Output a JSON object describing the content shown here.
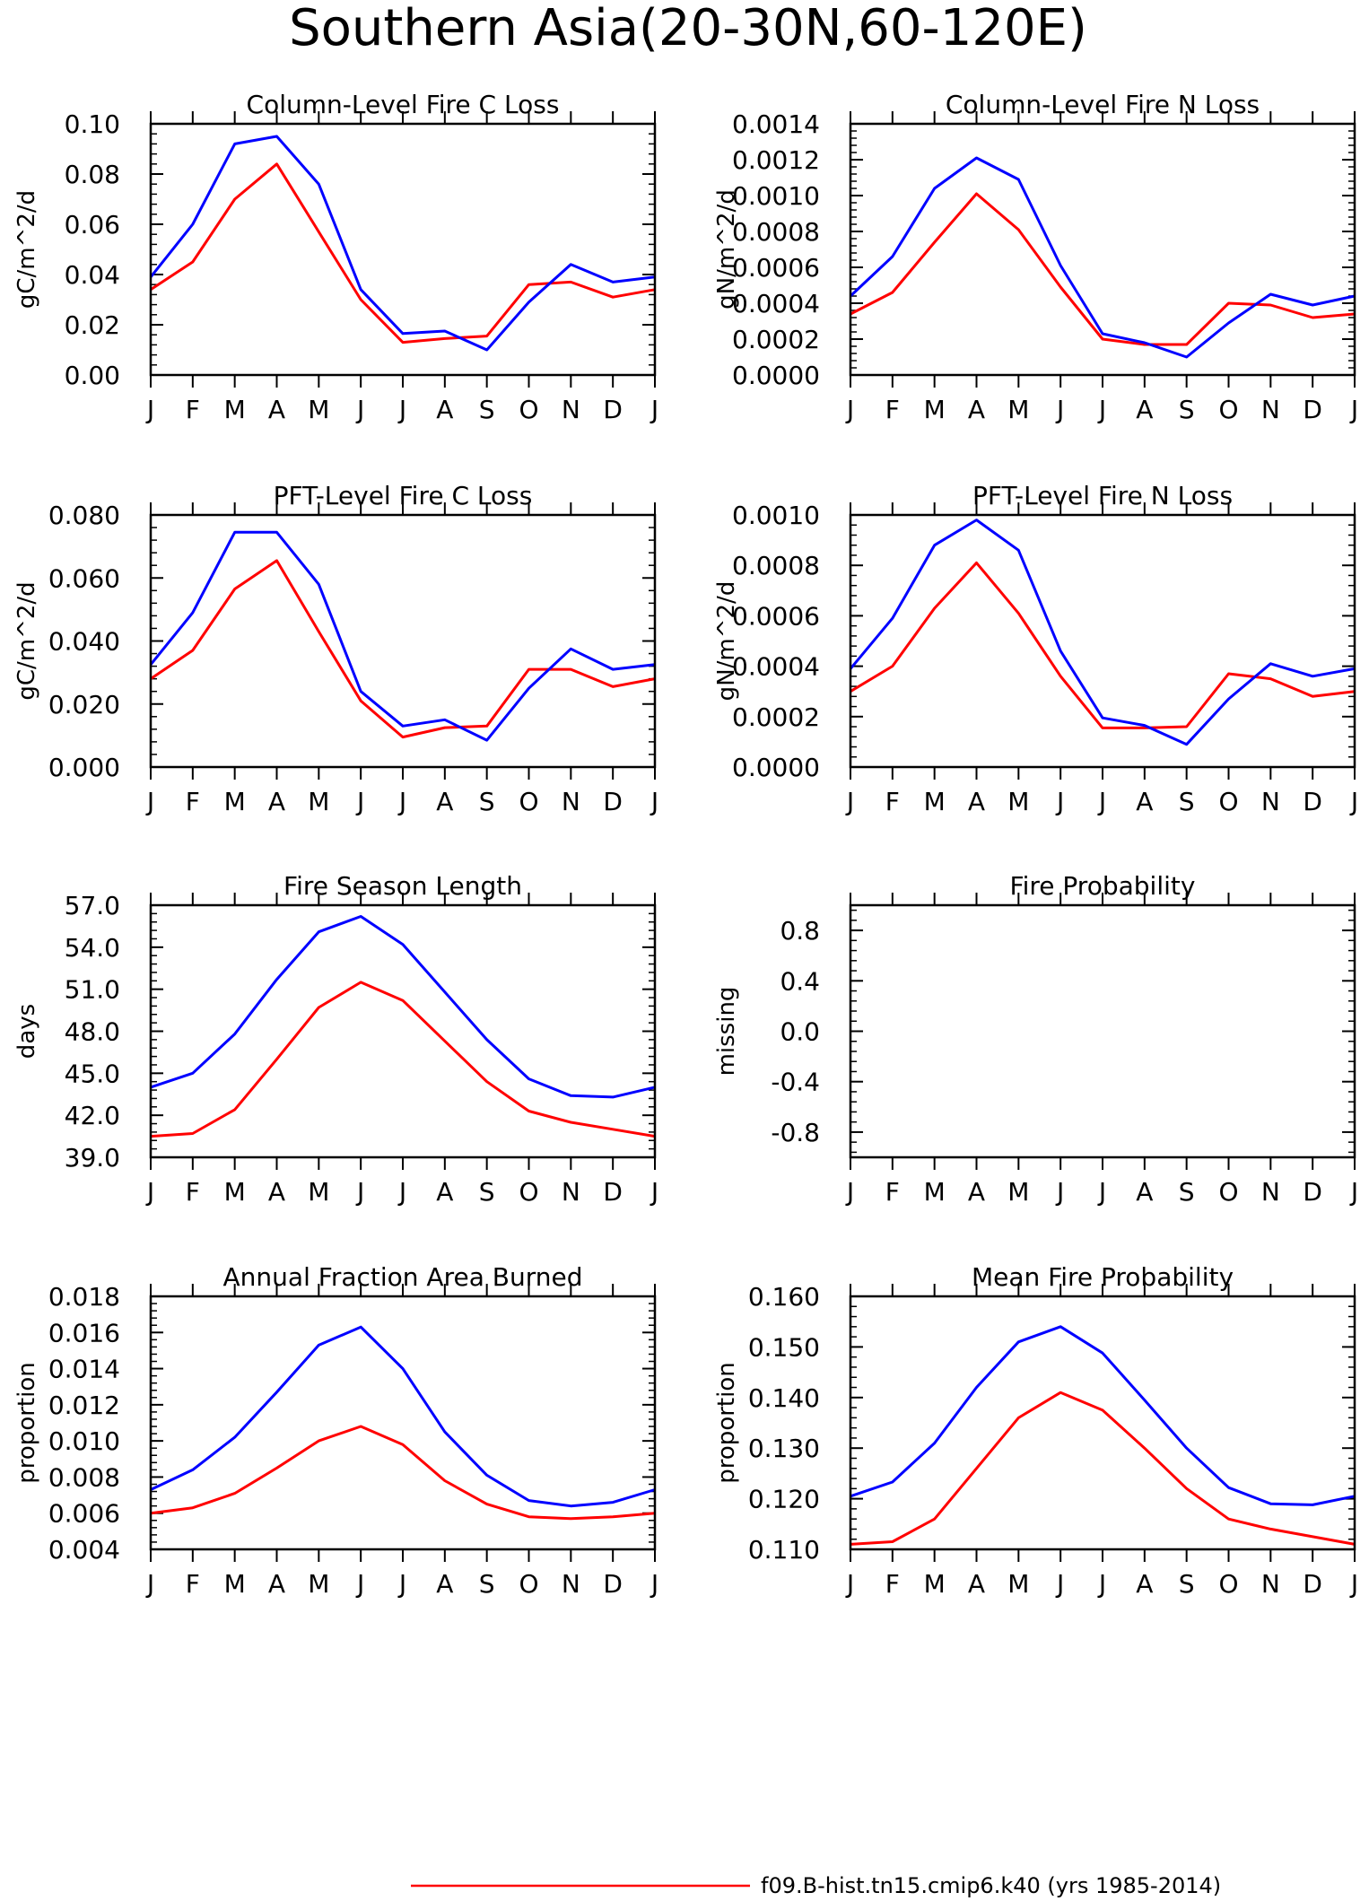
{
  "figure": {
    "title": "Southern Asia(20-30N,60-120E)",
    "legend_entry": "f09.B-hist.tn15.cmip6.k40 (yrs 1985-2014)"
  },
  "colors": {
    "series_red": "#ff0000",
    "series_blue": "#0000ff",
    "axis": "#000000"
  },
  "chart_data": [
    {
      "type": "line",
      "title": "Column-Level Fire C Loss",
      "ylabel": "gC/m^2/d",
      "categories": [
        "J",
        "F",
        "M",
        "A",
        "M",
        "J",
        "J",
        "A",
        "S",
        "O",
        "N",
        "D",
        "J"
      ],
      "ylim": [
        0,
        0.1
      ],
      "yticks": [
        "0.00",
        "0.02",
        "0.04",
        "0.06",
        "0.08",
        "0.10"
      ],
      "grid": false,
      "series": [
        {
          "color": "red",
          "values": [
            0.034,
            0.045,
            0.07,
            0.084,
            0.057,
            0.03,
            0.013,
            0.0145,
            0.0155,
            0.036,
            0.037,
            0.031,
            0.034
          ]
        },
        {
          "color": "blue",
          "values": [
            0.039,
            0.06,
            0.092,
            0.095,
            0.076,
            0.034,
            0.0165,
            0.0175,
            0.01,
            0.029,
            0.044,
            0.037,
            0.039
          ]
        }
      ]
    },
    {
      "type": "line",
      "title": "Column-Level Fire N Loss",
      "ylabel": "gN/m^2/d",
      "categories": [
        "J",
        "F",
        "M",
        "A",
        "M",
        "J",
        "J",
        "A",
        "S",
        "O",
        "N",
        "D",
        "J"
      ],
      "ylim": [
        0,
        0.0014
      ],
      "yticks": [
        "0.0000",
        "0.0002",
        "0.0004",
        "0.0006",
        "0.0008",
        "0.0010",
        "0.0012",
        "0.0014"
      ],
      "grid": false,
      "series": [
        {
          "color": "red",
          "values": [
            0.00034,
            0.00046,
            0.00074,
            0.00101,
            0.00081,
            0.00049,
            0.0002,
            0.00017,
            0.00017,
            0.0004,
            0.00039,
            0.00032,
            0.00034
          ]
        },
        {
          "color": "blue",
          "values": [
            0.00044,
            0.00066,
            0.00104,
            0.00121,
            0.00109,
            0.00061,
            0.00023,
            0.00018,
            0.0001,
            0.00029,
            0.00045,
            0.00039,
            0.00044
          ]
        }
      ]
    },
    {
      "type": "line",
      "title": "PFT-Level Fire C Loss",
      "ylabel": "gC/m^2/d",
      "categories": [
        "J",
        "F",
        "M",
        "A",
        "M",
        "J",
        "J",
        "A",
        "S",
        "O",
        "N",
        "D",
        "J"
      ],
      "ylim": [
        0,
        0.08
      ],
      "yticks": [
        "0.000",
        "0.020",
        "0.040",
        "0.060",
        "0.080"
      ],
      "grid": false,
      "series": [
        {
          "color": "red",
          "values": [
            0.028,
            0.037,
            0.0565,
            0.0655,
            0.043,
            0.021,
            0.0095,
            0.0125,
            0.013,
            0.031,
            0.031,
            0.0255,
            0.028
          ]
        },
        {
          "color": "blue",
          "values": [
            0.0325,
            0.049,
            0.0745,
            0.0745,
            0.058,
            0.024,
            0.013,
            0.015,
            0.0085,
            0.025,
            0.0375,
            0.031,
            0.0325
          ]
        }
      ]
    },
    {
      "type": "line",
      "title": "PFT-Level Fire N Loss",
      "ylabel": "gN/m^2/d",
      "categories": [
        "J",
        "F",
        "M",
        "A",
        "M",
        "J",
        "J",
        "A",
        "S",
        "O",
        "N",
        "D",
        "J"
      ],
      "ylim": [
        0,
        0.001
      ],
      "yticks": [
        "0.0000",
        "0.0002",
        "0.0004",
        "0.0006",
        "0.0008",
        "0.0010"
      ],
      "grid": false,
      "series": [
        {
          "color": "red",
          "values": [
            0.0003,
            0.0004,
            0.00063,
            0.00081,
            0.00061,
            0.00036,
            0.000155,
            0.000155,
            0.00016,
            0.00037,
            0.00035,
            0.00028,
            0.0003
          ]
        },
        {
          "color": "blue",
          "values": [
            0.00039,
            0.00059,
            0.00088,
            0.00098,
            0.00086,
            0.00046,
            0.000195,
            0.000165,
            9e-05,
            0.00027,
            0.00041,
            0.00036,
            0.00039
          ]
        }
      ]
    },
    {
      "type": "line",
      "title": "Fire Season Length",
      "ylabel": "days",
      "categories": [
        "J",
        "F",
        "M",
        "A",
        "M",
        "J",
        "J",
        "A",
        "S",
        "O",
        "N",
        "D",
        "J"
      ],
      "ylim": [
        39,
        57
      ],
      "yticks": [
        "39.0",
        "42.0",
        "45.0",
        "48.0",
        "51.0",
        "54.0",
        "57.0"
      ],
      "grid": false,
      "series": [
        {
          "color": "red",
          "values": [
            40.5,
            40.7,
            42.4,
            46.0,
            49.7,
            51.5,
            50.2,
            47.3,
            44.4,
            42.3,
            41.5,
            41.0,
            40.5
          ]
        },
        {
          "color": "blue",
          "values": [
            44.0,
            45.0,
            47.8,
            51.7,
            55.1,
            56.2,
            54.2,
            50.8,
            47.4,
            44.6,
            43.4,
            43.3,
            44.0
          ]
        }
      ]
    },
    {
      "type": "line",
      "title": "Fire Probability",
      "ylabel": "missing",
      "categories": [
        "J",
        "F",
        "M",
        "A",
        "M",
        "J",
        "J",
        "A",
        "S",
        "O",
        "N",
        "D",
        "J"
      ],
      "ylim": [
        -1,
        1
      ],
      "yticks": [
        "-0.8",
        "-0.4",
        "0.0",
        "0.4",
        "0.8"
      ],
      "ytick_values": [
        -0.8,
        -0.4,
        0.0,
        0.4,
        0.8
      ],
      "grid": false,
      "series": []
    },
    {
      "type": "line",
      "title": "Annual Fraction Area Burned",
      "ylabel": "proportion",
      "categories": [
        "J",
        "F",
        "M",
        "A",
        "M",
        "J",
        "J",
        "A",
        "S",
        "O",
        "N",
        "D",
        "J"
      ],
      "ylim": [
        0.004,
        0.018
      ],
      "yticks": [
        "0.004",
        "0.006",
        "0.008",
        "0.010",
        "0.012",
        "0.014",
        "0.016",
        "0.018"
      ],
      "grid": false,
      "series": [
        {
          "color": "red",
          "values": [
            0.006,
            0.0063,
            0.0071,
            0.0085,
            0.01,
            0.0108,
            0.0098,
            0.0078,
            0.0065,
            0.0058,
            0.0057,
            0.0058,
            0.006
          ]
        },
        {
          "color": "blue",
          "values": [
            0.0073,
            0.0084,
            0.0102,
            0.0127,
            0.0153,
            0.0163,
            0.014,
            0.0105,
            0.0081,
            0.0067,
            0.0064,
            0.0066,
            0.0073
          ]
        }
      ]
    },
    {
      "type": "line",
      "title": "Mean Fire Probability",
      "ylabel": "proportion",
      "categories": [
        "J",
        "F",
        "M",
        "A",
        "M",
        "J",
        "J",
        "A",
        "S",
        "O",
        "N",
        "D",
        "J"
      ],
      "ylim": [
        0.11,
        0.16
      ],
      "yticks": [
        "0.110",
        "0.120",
        "0.130",
        "0.140",
        "0.150",
        "0.160"
      ],
      "grid": false,
      "series": [
        {
          "color": "red",
          "values": [
            0.111,
            0.1115,
            0.116,
            0.126,
            0.136,
            0.141,
            0.1375,
            0.13,
            0.122,
            0.116,
            0.114,
            0.1125,
            0.111
          ]
        },
        {
          "color": "blue",
          "values": [
            0.1205,
            0.1233,
            0.131,
            0.142,
            0.151,
            0.154,
            0.1488,
            0.1395,
            0.13,
            0.1222,
            0.119,
            0.1188,
            0.1205
          ]
        }
      ]
    }
  ]
}
